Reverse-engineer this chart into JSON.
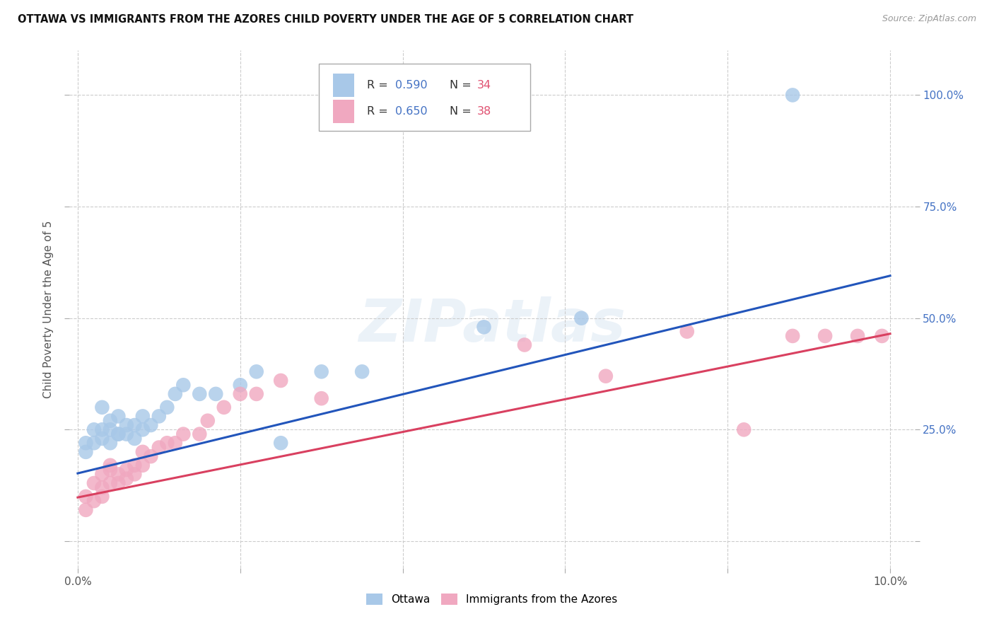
{
  "title": "OTTAWA VS IMMIGRANTS FROM THE AZORES CHILD POVERTY UNDER THE AGE OF 5 CORRELATION CHART",
  "source": "Source: ZipAtlas.com",
  "ylabel": "Child Poverty Under the Age of 5",
  "xlim": [
    -0.001,
    0.103
  ],
  "ylim": [
    -0.06,
    1.1
  ],
  "yticks": [
    0.0,
    0.25,
    0.5,
    0.75,
    1.0
  ],
  "xticks": [
    0.0,
    0.02,
    0.04,
    0.06,
    0.08,
    0.1
  ],
  "legend_label1": "Ottawa",
  "legend_label2": "Immigrants from the Azores",
  "R1": "0.590",
  "N1": "34",
  "R2": "0.650",
  "N2": "38",
  "color_ottawa": "#a8c8e8",
  "color_azores": "#f0a8c0",
  "color_line_ottawa": "#2255bb",
  "color_line_azores": "#d94060",
  "ottawa_x": [
    0.001,
    0.001,
    0.002,
    0.002,
    0.003,
    0.003,
    0.003,
    0.004,
    0.004,
    0.004,
    0.005,
    0.005,
    0.005,
    0.006,
    0.006,
    0.007,
    0.007,
    0.008,
    0.008,
    0.009,
    0.01,
    0.011,
    0.012,
    0.013,
    0.015,
    0.017,
    0.02,
    0.022,
    0.025,
    0.03,
    0.035,
    0.05,
    0.062,
    0.088
  ],
  "ottawa_y": [
    0.22,
    0.2,
    0.25,
    0.22,
    0.25,
    0.23,
    0.3,
    0.27,
    0.22,
    0.25,
    0.24,
    0.28,
    0.24,
    0.26,
    0.24,
    0.26,
    0.23,
    0.25,
    0.28,
    0.26,
    0.28,
    0.3,
    0.33,
    0.35,
    0.33,
    0.33,
    0.35,
    0.38,
    0.22,
    0.38,
    0.38,
    0.48,
    0.5,
    1.0
  ],
  "azores_x": [
    0.001,
    0.001,
    0.002,
    0.002,
    0.003,
    0.003,
    0.003,
    0.004,
    0.004,
    0.004,
    0.005,
    0.005,
    0.006,
    0.006,
    0.007,
    0.007,
    0.008,
    0.008,
    0.009,
    0.01,
    0.011,
    0.012,
    0.013,
    0.015,
    0.016,
    0.018,
    0.02,
    0.022,
    0.025,
    0.03,
    0.055,
    0.065,
    0.075,
    0.082,
    0.088,
    0.092,
    0.096,
    0.099
  ],
  "azores_y": [
    0.1,
    0.07,
    0.13,
    0.09,
    0.1,
    0.12,
    0.15,
    0.16,
    0.13,
    0.17,
    0.15,
    0.13,
    0.16,
    0.14,
    0.17,
    0.15,
    0.17,
    0.2,
    0.19,
    0.21,
    0.22,
    0.22,
    0.24,
    0.24,
    0.27,
    0.3,
    0.33,
    0.33,
    0.36,
    0.32,
    0.44,
    0.37,
    0.47,
    0.25,
    0.46,
    0.46,
    0.46,
    0.46
  ],
  "line_ottawa_x0": 0.0,
  "line_ottawa_y0": 0.152,
  "line_ottawa_x1": 0.1,
  "line_ottawa_y1": 0.595,
  "line_azores_x0": 0.0,
  "line_azores_y0": 0.098,
  "line_azores_x1": 0.1,
  "line_azores_y1": 0.465
}
